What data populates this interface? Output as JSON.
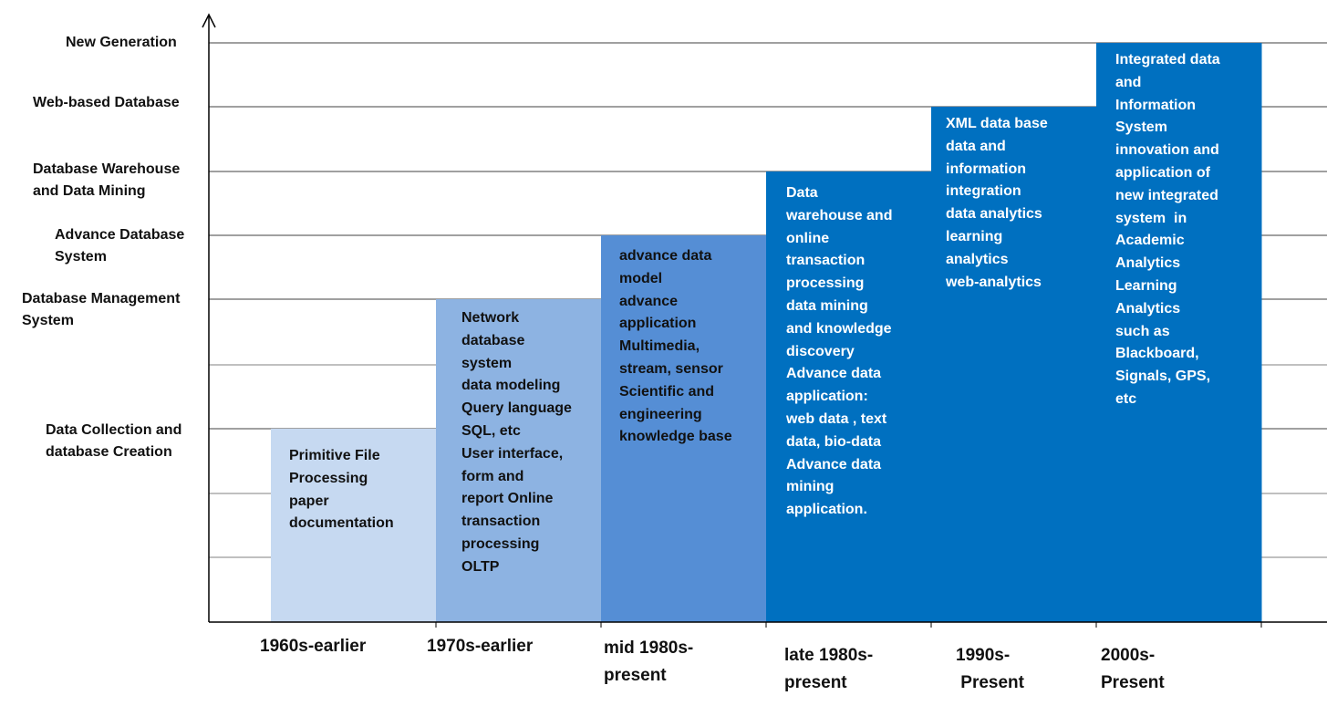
{
  "chart_data": {
    "type": "bar",
    "title": "",
    "xlabel": "",
    "ylabel": "",
    "y_levels": [
      "Data Collection and\ndatabase Creation",
      "Database Management\nSystem",
      "Advance Database\nSystem",
      "Database Warehouse\nand Data Mining",
      "Web-based Database",
      "New Generation"
    ],
    "categories": [
      "1960s-earlier",
      "1970s-earlier",
      "mid 1980s-\npresent",
      "late 1980s-\npresent",
      "1990s-\n Present",
      "2000s-\nPresent"
    ],
    "values": [
      1,
      2,
      3,
      4,
      5,
      6
    ],
    "ylim": [
      0,
      6
    ],
    "grid": true,
    "bar_texts": [
      "Primitive File\nProcessing\npaper\ndocumentation",
      "Network\ndatabase\nsystem\ndata modeling\nQuery language\nSQL, etc\nUser interface,\nform and\nreport Online\ntransaction\nprocessing\nOLTP",
      "advance data\nmodel\nadvance\napplication\nMultimedia,\nstream, sensor\nScientific and\nengineering\nknowledge base",
      "Data\nwarehouse and\nonline\ntransaction\nprocessing\ndata mining\nand knowledge\ndiscovery\nAdvance data\napplication:\nweb data , text\ndata, bio-data\nAdvance data\nmining\napplication.",
      "XML data base\ndata and\ninformation\nintegration\ndata analytics\nlearning\nanalytics\nweb-analytics",
      "Integrated data\nand\nInformation\nSystem\ninnovation and\napplication of\nnew integrated\nsystem  in\nAcademic\nAnalytics\nLearning\nAnalytics\nsuch as\nBlackboard,\nSignals, GPS,\netc"
    ],
    "bar_colors": [
      "#c6d9f1",
      "#8db3e2",
      "#558ed5",
      "#0070c0",
      "#0070c0",
      "#0070c0"
    ],
    "bar_text_colors": [
      "#111111",
      "#111111",
      "#111111",
      "#ffffff",
      "#ffffff",
      "#ffffff"
    ],
    "grid_color": "#808080",
    "axis_color": "#000000"
  }
}
